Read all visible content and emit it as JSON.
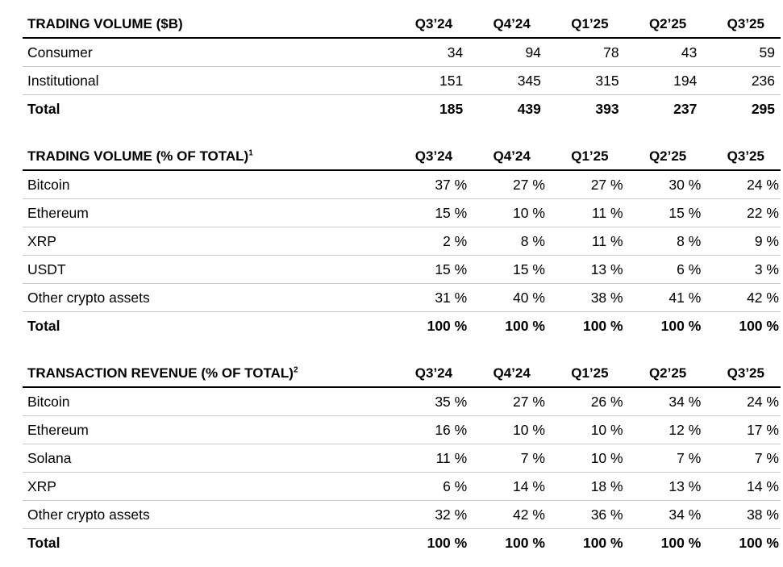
{
  "tables": [
    {
      "title": "TRADING VOLUME ($B)",
      "columns": [
        "Q3’24",
        "Q4’24",
        "Q1’25",
        "Q2’25",
        "Q3’25"
      ],
      "rows": [
        [
          "Consumer",
          "34",
          "94",
          "78",
          "43",
          "59"
        ],
        [
          "Institutional",
          "151",
          "345",
          "315",
          "194",
          "236"
        ]
      ],
      "total": [
        "Total",
        "185",
        "439",
        "393",
        "237",
        "295"
      ]
    },
    {
      "title": "TRADING VOLUME (% OF TOTAL)",
      "note": "1",
      "columns": [
        "Q3’24",
        "Q4’24",
        "Q1’25",
        "Q2’25",
        "Q3’25"
      ],
      "rows": [
        [
          "Bitcoin",
          "37 %",
          "27 %",
          "27 %",
          "30 %",
          "24 %"
        ],
        [
          "Ethereum",
          "15 %",
          "10 %",
          "11 %",
          "15 %",
          "22 %"
        ],
        [
          "XRP",
          "2 %",
          "8 %",
          "11 %",
          "8 %",
          "9 %"
        ],
        [
          "USDT",
          "15 %",
          "15 %",
          "13 %",
          "6 %",
          "3 %"
        ],
        [
          "Other crypto assets",
          "31 %",
          "40 %",
          "38 %",
          "41 %",
          "42 %"
        ]
      ],
      "total": [
        "Total",
        "100 %",
        "100 %",
        "100 %",
        "100 %",
        "100 %"
      ]
    },
    {
      "title": "TRANSACTION REVENUE (% OF TOTAL)",
      "note": "2",
      "columns": [
        "Q3’24",
        "Q4’24",
        "Q1’25",
        "Q2’25",
        "Q3’25"
      ],
      "rows": [
        [
          "Bitcoin",
          "35 %",
          "27 %",
          "26 %",
          "34 %",
          "24 %"
        ],
        [
          "Ethereum",
          "16 %",
          "10 %",
          "10 %",
          "12 %",
          "17 %"
        ],
        [
          "Solana",
          "11 %",
          "7 %",
          "10 %",
          "7 %",
          "7 %"
        ],
        [
          "XRP",
          "6 %",
          "14 %",
          "18 %",
          "13 %",
          "14 %"
        ],
        [
          "Other crypto assets",
          "32 %",
          "42 %",
          "36 %",
          "34 %",
          "38 %"
        ]
      ],
      "total": [
        "Total",
        "100 %",
        "100 %",
        "100 %",
        "100 %",
        "100 %"
      ]
    }
  ]
}
